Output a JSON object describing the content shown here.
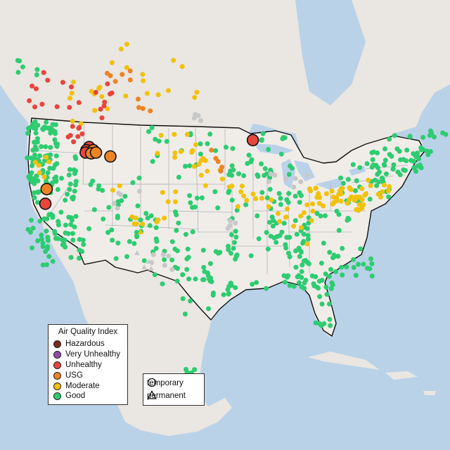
{
  "map": {
    "colors": {
      "water": "#b9d2e8",
      "land": "#eae6e1",
      "usa_land": "#f0ede9",
      "border": "#111111",
      "state_line": "#b5b5b5"
    }
  },
  "legend": {
    "title": "Air Quality Index",
    "categories": [
      {
        "label": "Hazardous",
        "color": "#7e2b1f"
      },
      {
        "label": "Very Unhealthy",
        "color": "#8f4fa8"
      },
      {
        "label": "Unhealthy",
        "color": "#e8453c"
      },
      {
        "label": "USG",
        "color": "#ee8324"
      },
      {
        "label": "Moderate",
        "color": "#f2c10c"
      },
      {
        "label": "Good",
        "color": "#2ecc71"
      }
    ],
    "unknown_color": "#c8c8c8"
  },
  "monitor_types": {
    "temporary": "temporary",
    "permanent": "permanent"
  },
  "large_markers": [
    {
      "category": "Unhealthy",
      "lon": -116.1,
      "lat": 45.9
    },
    {
      "category": "Unhealthy",
      "lon": -116.5,
      "lat": 45.5
    },
    {
      "category": "Unhealthy",
      "lon": -116.6,
      "lat": 45.2
    },
    {
      "category": "USG",
      "lon": -115.5,
      "lat": 45.5
    },
    {
      "category": "USG",
      "lon": -115.8,
      "lat": 45.1
    },
    {
      "category": "USG",
      "lon": -115.1,
      "lat": 45.2
    },
    {
      "category": "USG",
      "lon": -113.0,
      "lat": 44.7
    },
    {
      "category": "Unhealthy",
      "lon": -92.2,
      "lat": 46.8
    },
    {
      "category": "USG",
      "lon": -122.3,
      "lat": 40.5
    },
    {
      "category": "Unhealthy",
      "lon": -122.5,
      "lat": 38.6
    }
  ]
}
